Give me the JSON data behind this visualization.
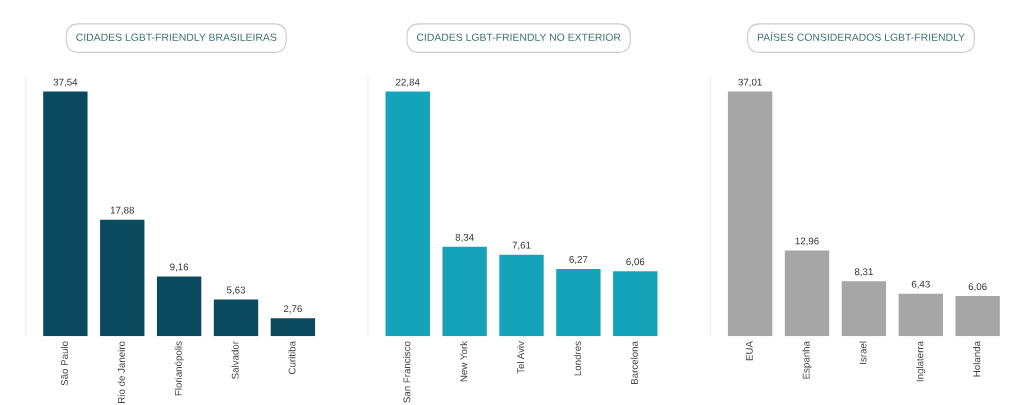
{
  "chart_data": [
    {
      "type": "bar",
      "title": "CIDADES LGBT-FRIENDLY BRASILEIRAS",
      "categories": [
        "São Paulo",
        "Rio de Janeiro",
        "Florianópolis",
        "Salvador",
        "Curitiba"
      ],
      "values": [
        37.54,
        17.88,
        9.16,
        5.63,
        2.76
      ],
      "value_labels": [
        "37,54",
        "17,88",
        "9,16",
        "5,63",
        "2,76"
      ],
      "color": "#0b4a5e",
      "tick_labels": "x",
      "grid": false
    },
    {
      "type": "bar",
      "title": "CIDADES LGBT-FRIENDLY NO EXTERIOR",
      "categories": [
        "San Francisco",
        "New York",
        "Tel Aviv",
        "Londres",
        "Barcelona"
      ],
      "values": [
        22.84,
        8.34,
        7.61,
        6.27,
        6.06
      ],
      "value_labels": [
        "22,84",
        "8,34",
        "7,61",
        "6,27",
        "6,06"
      ],
      "color": "#14a3b8",
      "tick_labels": "x",
      "grid": false
    },
    {
      "type": "bar",
      "title": "PAÍSES CONSIDERADOS LGBT-FRIENDLY",
      "categories": [
        "EUA",
        "Espanha",
        "Israel",
        "Inglaterra",
        "Holanda"
      ],
      "values": [
        37.01,
        12.96,
        8.31,
        6.43,
        6.06
      ],
      "value_labels": [
        "37,01",
        "12,96",
        "8,31",
        "6,43",
        "6,06"
      ],
      "color": "#a6a6a6",
      "tick_labels": "x",
      "grid": false
    }
  ]
}
